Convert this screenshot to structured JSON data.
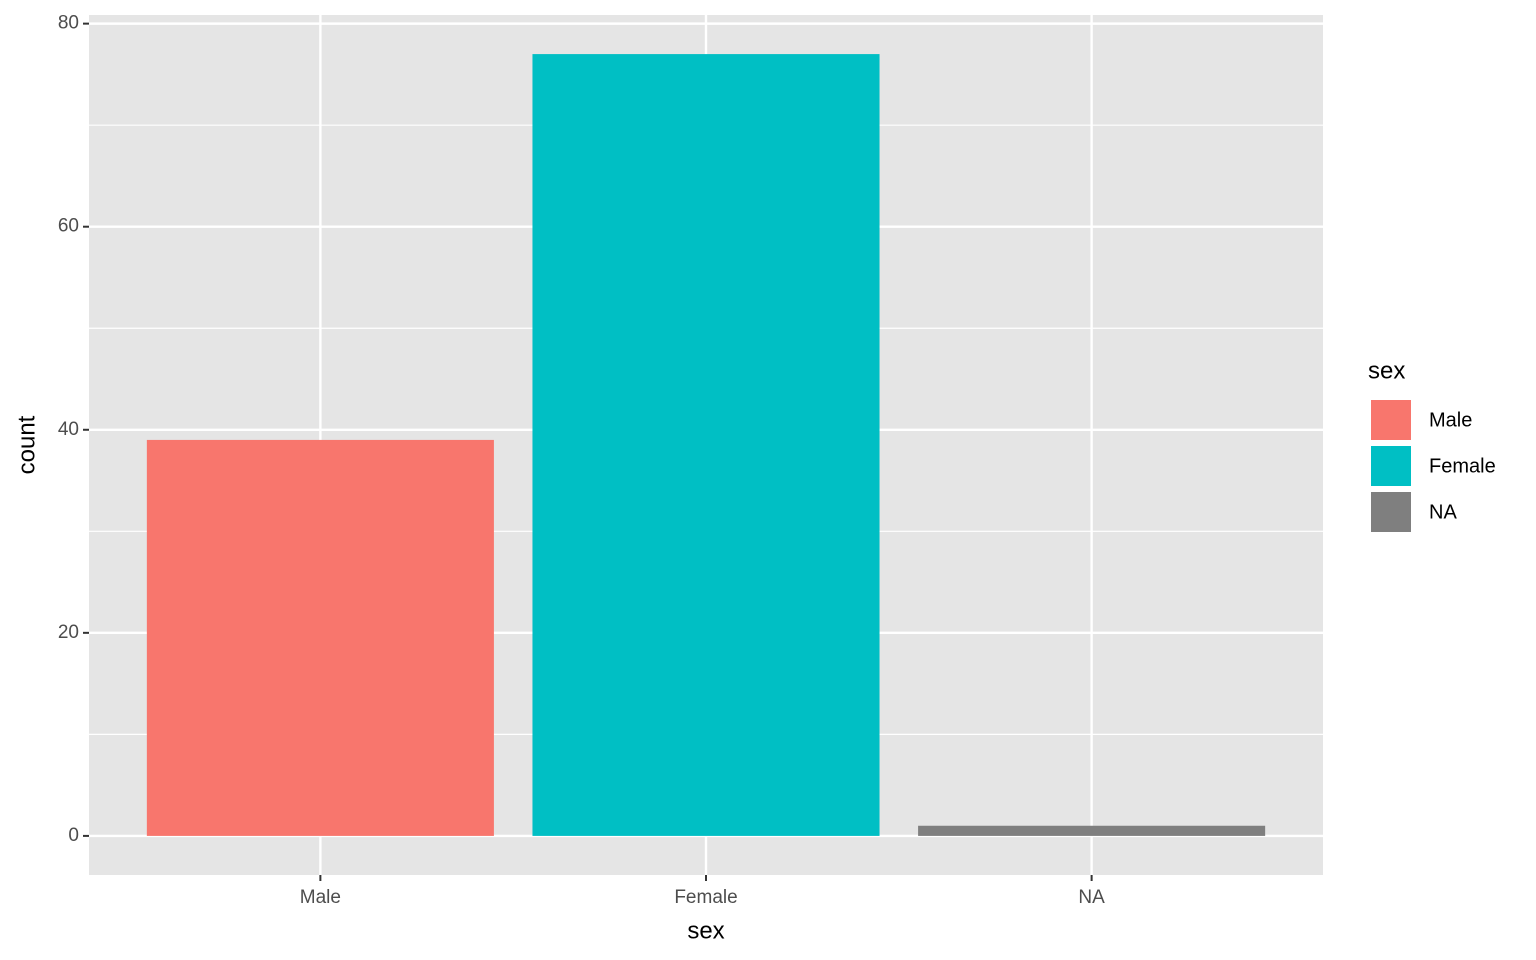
{
  "chart_data": {
    "type": "bar",
    "x_label": "sex",
    "y_label": "count",
    "legend_title": "sex",
    "categories": [
      "Male",
      "Female",
      "NA"
    ],
    "values": [
      39,
      77,
      1
    ],
    "colors": [
      "#f8766d",
      "#00bfc4",
      "#7f7f7f"
    ],
    "ylim": [
      -3.85,
      80.85
    ],
    "yticks": [
      0,
      20,
      40,
      60,
      80
    ],
    "minor_yticks": [
      10,
      30,
      50,
      70
    ],
    "grid": true,
    "legend": "right"
  }
}
